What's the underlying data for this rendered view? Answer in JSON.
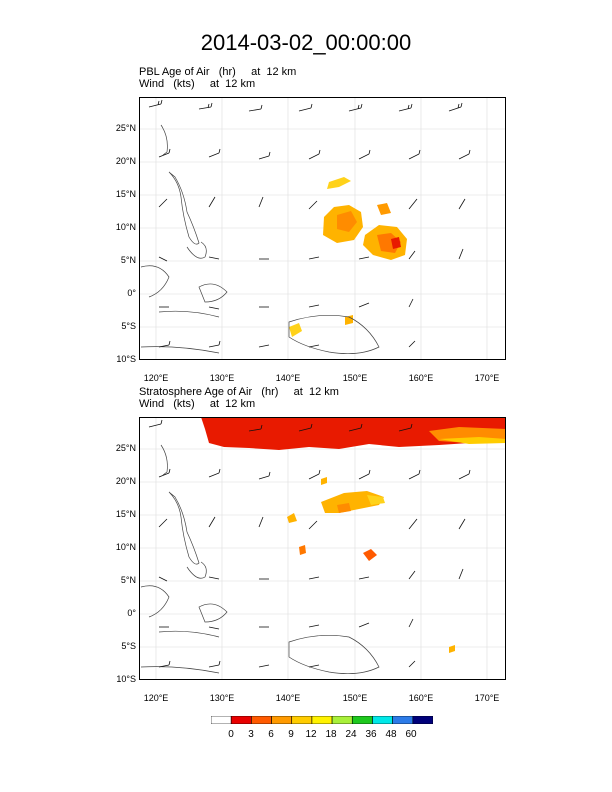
{
  "title": "2014-03-02_00:00:00",
  "panels": [
    {
      "line1": "PBL Age of Air   (hr)     at  12 km",
      "line2": "Wind   (kts)     at  12 km"
    },
    {
      "line1": "Stratosphere Age of Air   (hr)     at  12 km",
      "line2": "Wind   (kts)     at  12 km"
    }
  ],
  "lat_labels": [
    "25°N",
    "20°N",
    "15°N",
    "10°N",
    "5°N",
    "0°",
    "5°S",
    "10°S"
  ],
  "lon_labels": [
    "120°E",
    "130°E",
    "140°E",
    "150°E",
    "160°E",
    "170°E"
  ],
  "colorbar": {
    "labels": [
      "0",
      "3",
      "6",
      "9",
      "12",
      "18",
      "24",
      "36",
      "48",
      "60"
    ],
    "colors": [
      "#ffffff",
      "#e80000",
      "#ff5a00",
      "#ff9a00",
      "#ffcc00",
      "#fff200",
      "#a8f03a",
      "#1ec81e",
      "#00e8e8",
      "#2c7be8",
      "#00007a"
    ]
  }
}
